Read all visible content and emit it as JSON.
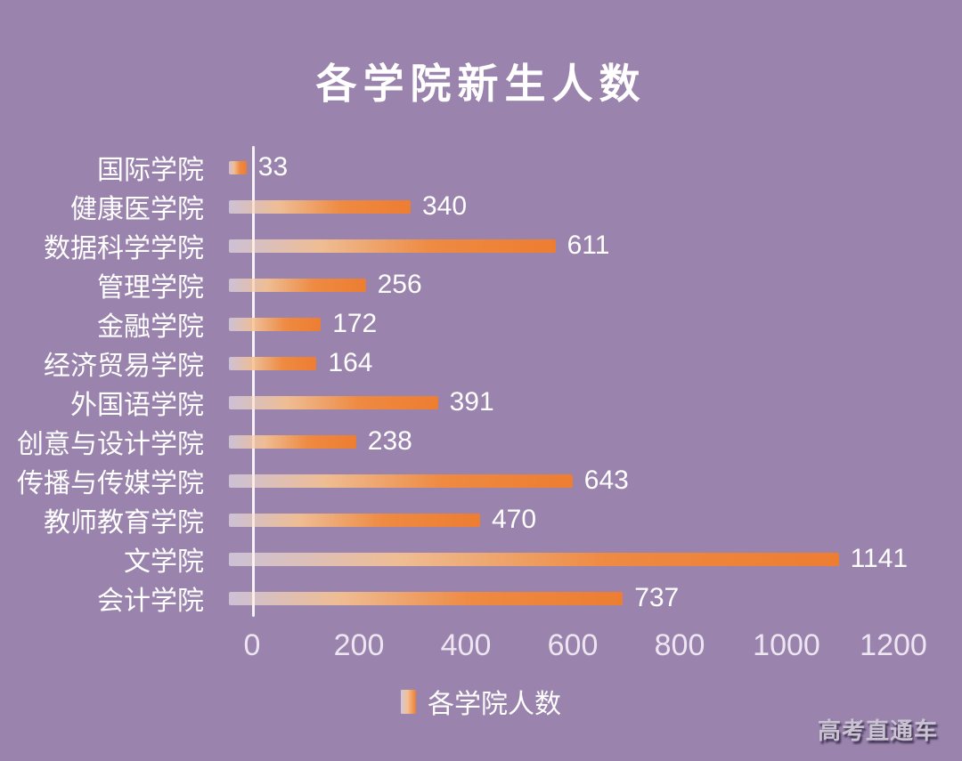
{
  "title": "各学院新生人数",
  "watermark": "高考直通车",
  "legend": {
    "label": "各学院人数"
  },
  "colors": {
    "background": "#9a83ac",
    "bar_orange": "#ed7d31",
    "bar_gradient_start": "rgba(255,255,255,0.5)",
    "axis_line": "#f6f2f9",
    "label_text": "#ffffff",
    "tick_text": "#ede5f2",
    "watermark_text": "#c9c2d1"
  },
  "chart_data": {
    "type": "bar",
    "orientation": "horizontal",
    "title": "各学院新生人数",
    "series_name": "各学院人数",
    "categories": [
      "国际学院",
      "健康医学院",
      "数据科学学院",
      "管理学院",
      "金融学院",
      "经济贸易学院",
      "外国语学院",
      "创意与设计学院",
      "传播与传媒学院",
      "教师教育学院",
      "文学院",
      "会计学院"
    ],
    "values": [
      33,
      340,
      611,
      256,
      172,
      164,
      391,
      238,
      643,
      470,
      1141,
      737
    ],
    "xlim": [
      0,
      1200
    ],
    "x_ticks": [
      0,
      200,
      400,
      600,
      800,
      1000,
      1200
    ],
    "grid": false,
    "data_labels": true,
    "legend_position": "bottom"
  }
}
